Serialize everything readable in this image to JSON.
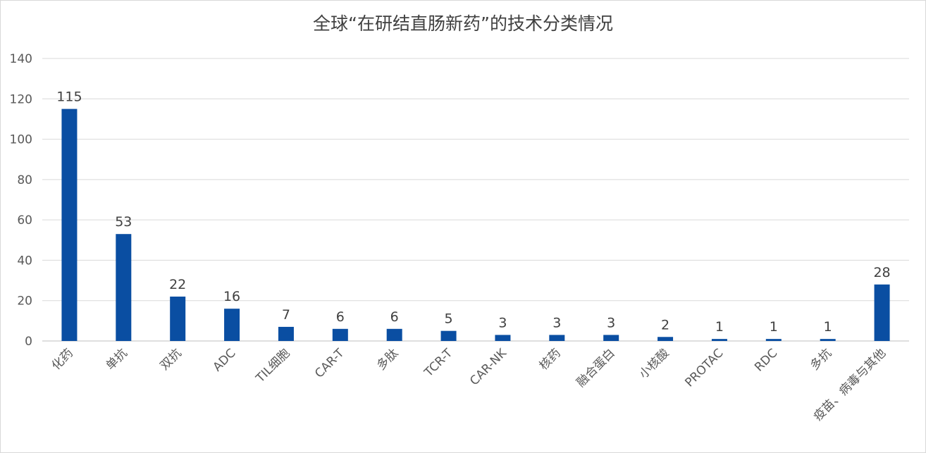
{
  "chart_data": {
    "type": "bar",
    "title": "全球“在研结直肠新药”的技术分类情况",
    "xlabel": "",
    "ylabel": "",
    "categories": [
      "化药",
      "单抗",
      "双抗",
      "ADC",
      "TIL细胞",
      "CAR-T",
      "多肽",
      "TCR-T",
      "CAR-NK",
      "核药",
      "融合蛋白",
      "小核酸",
      "PROTAC",
      "RDC",
      "多抗",
      "疫苗、病毒与其他"
    ],
    "values": [
      115,
      53,
      22,
      16,
      7,
      6,
      6,
      5,
      3,
      3,
      3,
      2,
      1,
      1,
      1,
      28
    ],
    "ylim": [
      0,
      140
    ],
    "yticks": [
      0,
      20,
      40,
      60,
      80,
      100,
      120,
      140
    ],
    "grid": true,
    "bar_color": "#0a4ea2",
    "data_labels": true
  }
}
